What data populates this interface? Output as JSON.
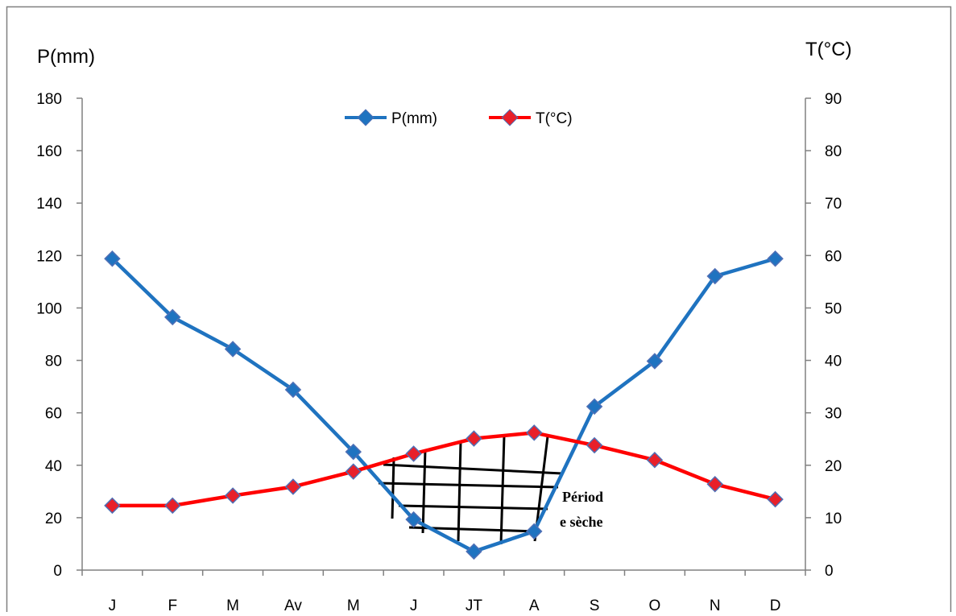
{
  "chart_data": {
    "type": "line",
    "categories": [
      "J",
      "F",
      "M",
      "Av",
      "M",
      "J",
      "JT",
      "A",
      "S",
      "O",
      "N",
      "D"
    ],
    "y_left_label": "P(mm)",
    "y_right_label": "T(°C)",
    "ylim_left": [
      0,
      180
    ],
    "ylim_right": [
      0,
      90
    ],
    "yticks_left": [
      "0",
      "20",
      "40",
      "60",
      "80",
      "100",
      "120",
      "140",
      "160",
      "180"
    ],
    "yticks_right": [
      "0",
      "10",
      "20",
      "30",
      "40",
      "50",
      "60",
      "70",
      "80",
      "90"
    ],
    "grid": false,
    "legend_position": "top-center",
    "series": [
      {
        "name": "P(mm)",
        "axis": "left",
        "color": "#1f73c0",
        "values": [
          118.8,
          96.5,
          84.3,
          68.8,
          45.1,
          19.3,
          7.1,
          14.8,
          62.4,
          79.7,
          112.1,
          118.8
        ]
      },
      {
        "name": "T(°C)",
        "axis": "right",
        "color": "#ff0000",
        "values": [
          12.3,
          12.3,
          14.2,
          15.9,
          18.8,
          22.2,
          25.1,
          26.2,
          23.8,
          21.0,
          16.4,
          13.5
        ]
      }
    ],
    "annotation": {
      "lines": [
        "Périod",
        "e sèche"
      ]
    }
  },
  "colors": {
    "marker_fill": "#e8202a",
    "marker_edge": "#4f6fb5",
    "axis": "#808080"
  }
}
